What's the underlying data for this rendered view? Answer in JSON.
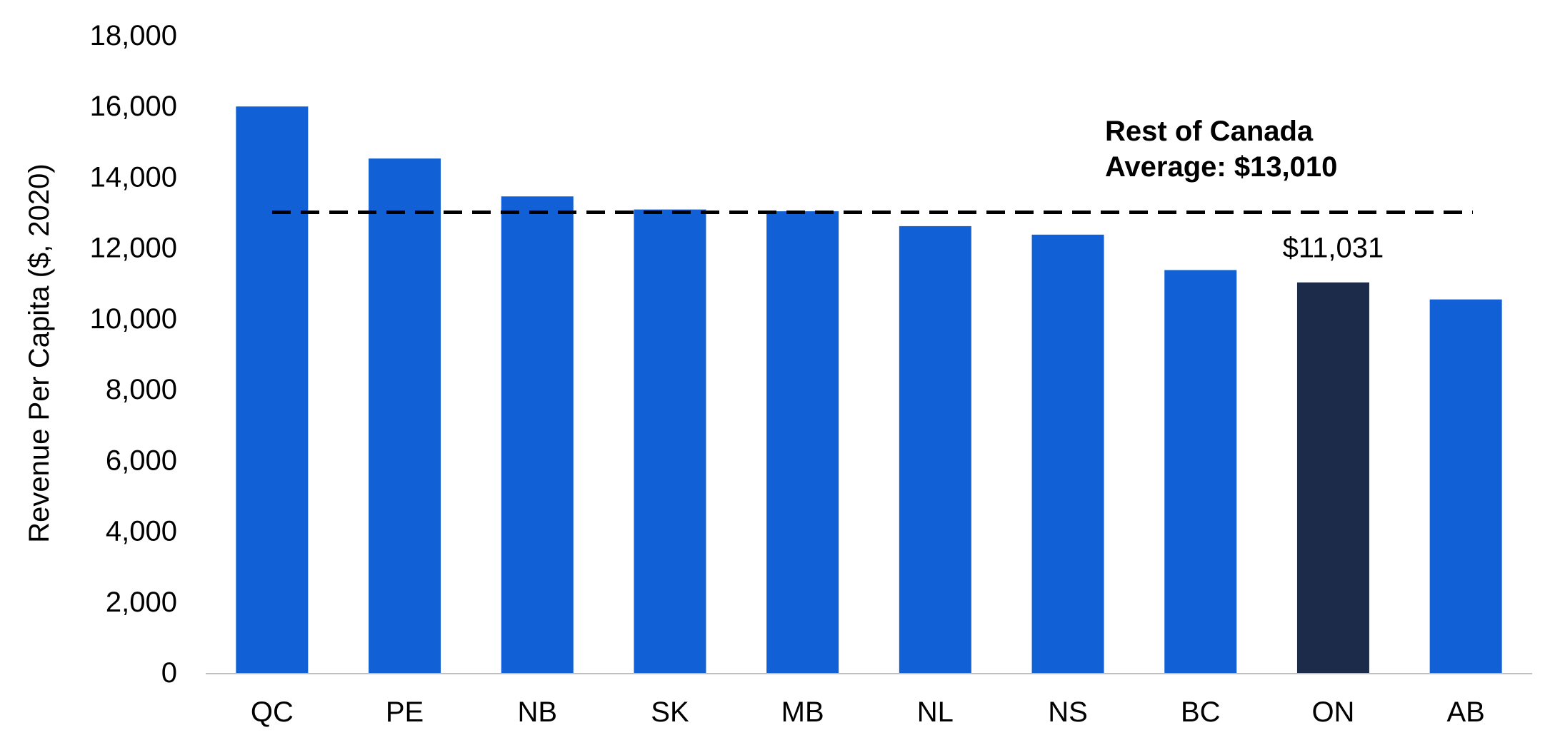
{
  "chart_data": {
    "type": "bar",
    "categories": [
      "QC",
      "PE",
      "NB",
      "SK",
      "MB",
      "NL",
      "NS",
      "BC",
      "ON",
      "AB"
    ],
    "values": [
      16000,
      14530,
      13460,
      13090,
      13040,
      12620,
      12380,
      11380,
      11031,
      10550
    ],
    "highlight_index": 8,
    "highlight_label": "$11,031",
    "ylabel": "Revenue Per Capita ($, 2020)",
    "ylim": [
      0,
      18000
    ],
    "yticks": [
      0,
      2000,
      4000,
      6000,
      8000,
      10000,
      12000,
      14000,
      16000,
      18000
    ],
    "ytick_labels": [
      "0",
      "2,000",
      "4,000",
      "6,000",
      "8,000",
      "10,000",
      "12,000",
      "14,000",
      "16,000",
      "18,000"
    ],
    "reference_line": {
      "value": 13010,
      "label_line1": "Rest of Canada",
      "label_line2": "Average: $13,010"
    },
    "grid": false,
    "legend": "none",
    "colors": {
      "bar": "#1260D6",
      "highlight": "#1C2B4A",
      "axis": "#BFBFBF",
      "text": "#000000",
      "reference_line": "#000000"
    }
  }
}
